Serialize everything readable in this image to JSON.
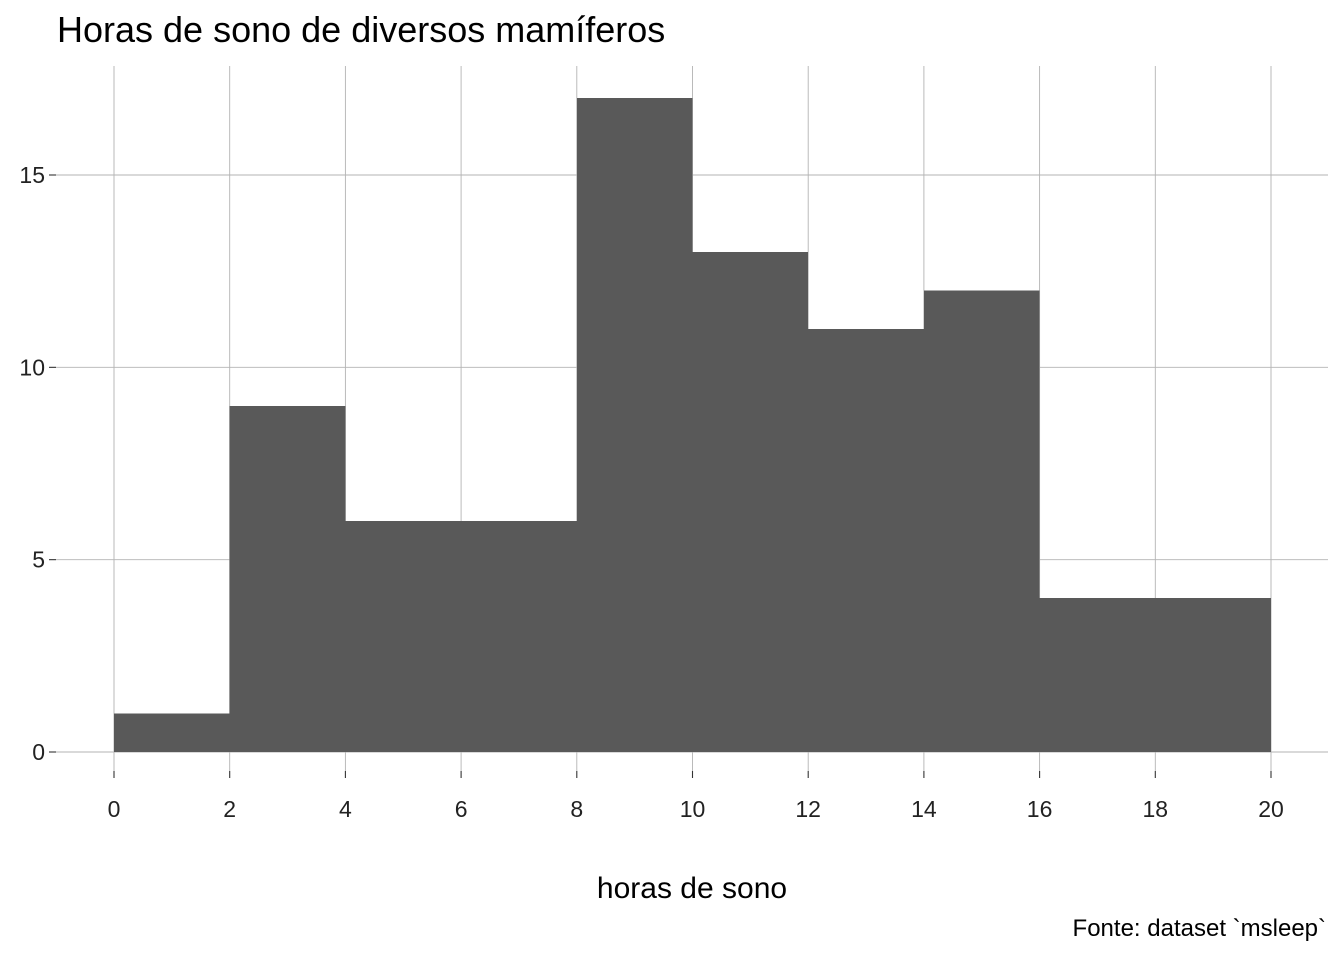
{
  "chart_data": {
    "type": "bar",
    "title": "Horas de sono de diversos mamíferos",
    "xlabel": "horas de sono",
    "ylabel": "",
    "caption": "Fonte: dataset `msleep`",
    "bins": [
      {
        "x0": 0,
        "x1": 2,
        "count": 1
      },
      {
        "x0": 2,
        "x1": 4,
        "count": 9
      },
      {
        "x0": 4,
        "x1": 6,
        "count": 6
      },
      {
        "x0": 6,
        "x1": 8,
        "count": 6
      },
      {
        "x0": 8,
        "x1": 10,
        "count": 17
      },
      {
        "x0": 10,
        "x1": 12,
        "count": 13
      },
      {
        "x0": 12,
        "x1": 14,
        "count": 11
      },
      {
        "x0": 14,
        "x1": 16,
        "count": 12
      },
      {
        "x0": 16,
        "x1": 18,
        "count": 4
      },
      {
        "x0": 18,
        "x1": 20,
        "count": 4
      }
    ],
    "xticks": [
      0,
      2,
      4,
      6,
      8,
      10,
      12,
      14,
      16,
      18,
      20
    ],
    "yticks": [
      0,
      5,
      10,
      15
    ],
    "xlim": [
      -1,
      21
    ],
    "ylim": [
      0,
      17.85
    ],
    "grid": true,
    "bar_color": "#595959"
  }
}
